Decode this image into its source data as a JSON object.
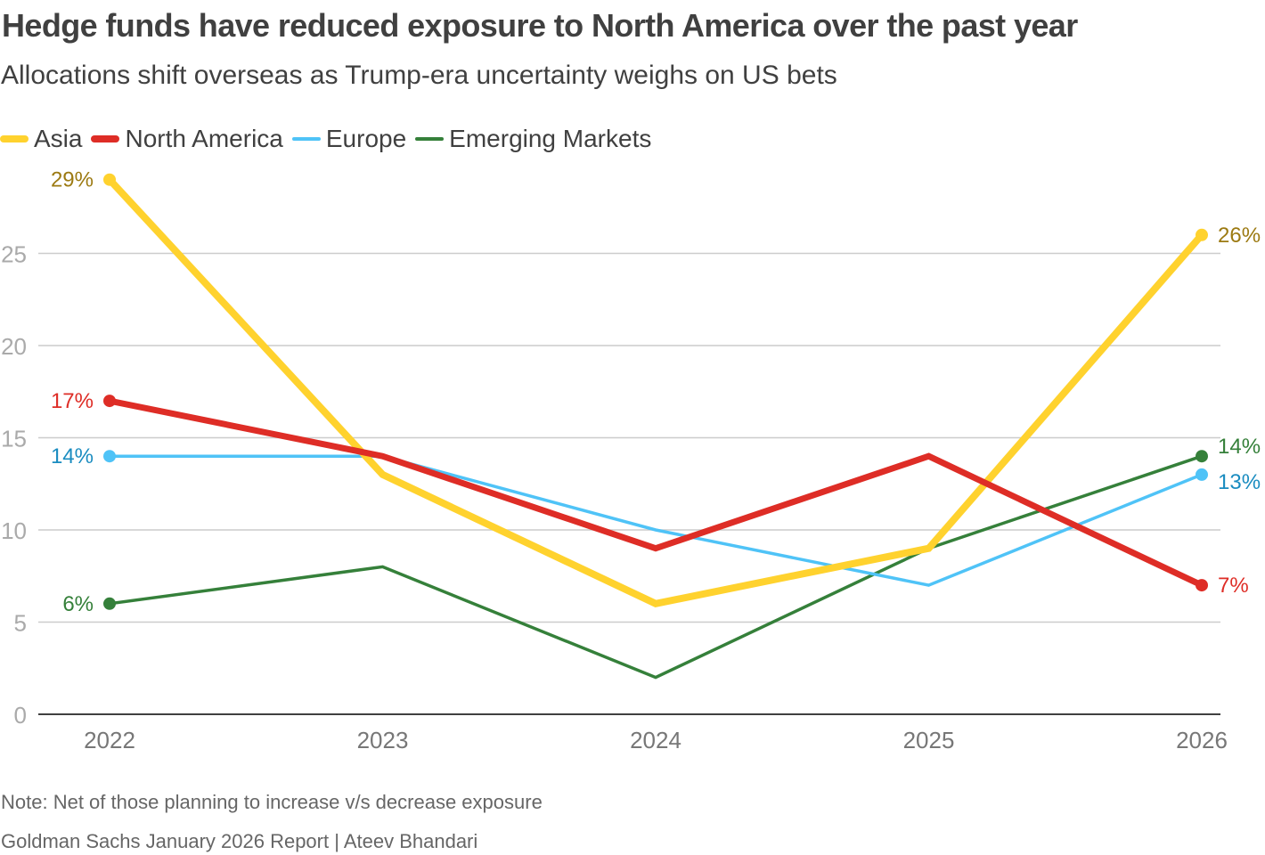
{
  "chart_data": {
    "type": "line",
    "title": "Hedge funds have reduced exposure to North America over the past year",
    "subtitle": "Allocations shift overseas as Trump-era uncertainty weighs on US bets",
    "xlabel": "",
    "ylabel": "",
    "x": [
      "2022",
      "2023",
      "2024",
      "2025",
      "2026"
    ],
    "ylim": [
      0,
      29
    ],
    "yticks": [
      0,
      5,
      10,
      15,
      20,
      25
    ],
    "grid": true,
    "legend_position": "top-left",
    "series": [
      {
        "name": "Asia",
        "color": "#FFD22E",
        "label_color": "#9C7A12",
        "values": [
          29,
          13,
          6,
          9,
          26
        ],
        "start_label": "29%",
        "end_label": "26%"
      },
      {
        "name": "North America",
        "color": "#DE2D26",
        "label_color": "#DE2D26",
        "values": [
          17,
          14,
          9,
          14,
          7
        ],
        "start_label": "17%",
        "end_label": "7%"
      },
      {
        "name": "Europe",
        "color": "#4FC3F7",
        "label_color": "#1A8CC0",
        "values": [
          14,
          14,
          10,
          7,
          13
        ],
        "start_label": "14%",
        "end_label": "13%"
      },
      {
        "name": "Emerging Markets",
        "color": "#35803A",
        "label_color": "#35803A",
        "values": [
          6,
          8,
          2,
          9,
          14
        ],
        "start_label": "6%",
        "end_label": "14%"
      }
    ],
    "note": "Note: Net of those planning to increase v/s decrease exposure",
    "source": "Goldman Sachs January 2026 Report | Ateev Bhandari"
  }
}
